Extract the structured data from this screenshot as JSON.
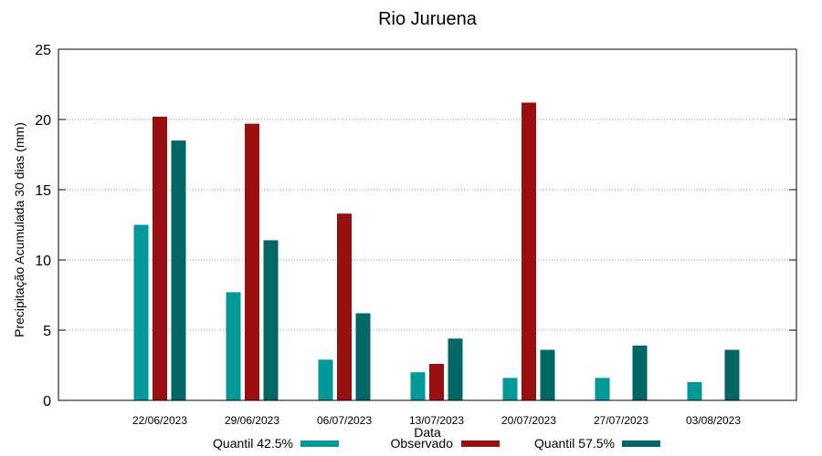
{
  "chart_data": {
    "type": "bar",
    "title": "Rio Juruena",
    "xlabel": "Data",
    "ylabel": "Precipitação Acumulada 30 dias (mm)",
    "ylim": [
      0,
      25
    ],
    "yticks": [
      0,
      5,
      10,
      15,
      20,
      25
    ],
    "grid": true,
    "legend_position": "bottom",
    "categories": [
      "22/06/2023",
      "29/06/2023",
      "06/07/2023",
      "13/07/2023",
      "20/07/2023",
      "27/07/2023",
      "03/08/2023"
    ],
    "series": [
      {
        "name": "Quantil 42.5%",
        "color": "#009999",
        "values": [
          12.5,
          7.7,
          2.9,
          2.0,
          1.6,
          1.6,
          1.3
        ]
      },
      {
        "name": "Observado",
        "color": "#990f0f",
        "values": [
          20.2,
          19.7,
          13.3,
          2.6,
          21.2,
          null,
          null
        ]
      },
      {
        "name": "Quantil 57.5%",
        "color": "#006666",
        "values": [
          18.5,
          11.4,
          6.2,
          4.4,
          3.6,
          3.9,
          3.6
        ]
      }
    ]
  }
}
